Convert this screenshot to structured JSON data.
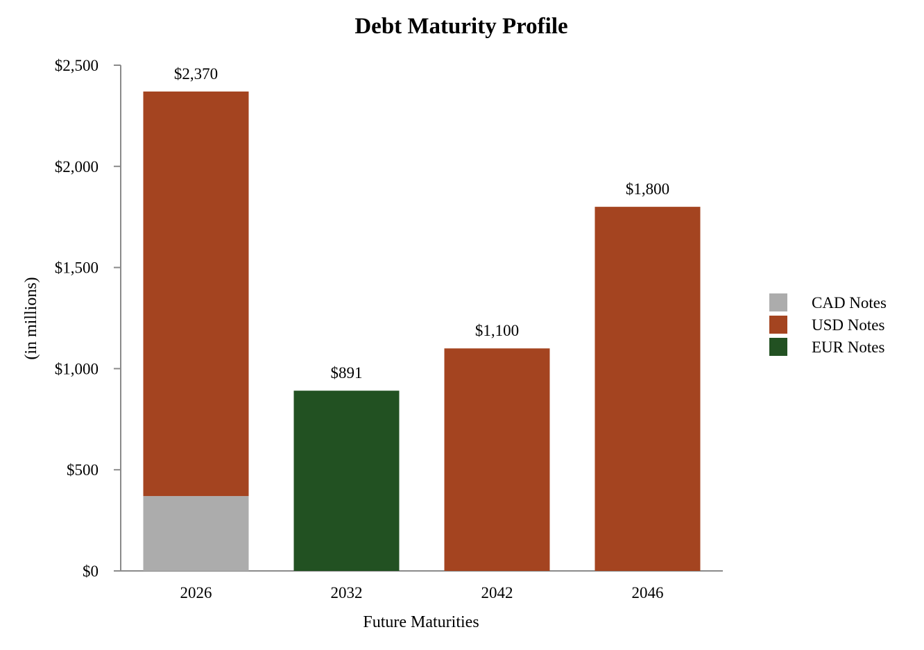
{
  "chart_data": {
    "type": "bar",
    "stacked": true,
    "title": "Debt Maturity Profile",
    "xlabel": "Future Maturities",
    "ylabel": "(in millions)",
    "categories": [
      "2026",
      "2032",
      "2042",
      "2046"
    ],
    "series": [
      {
        "name": "CAD Notes",
        "color": "#acacac",
        "values": [
          370,
          0,
          0,
          0
        ]
      },
      {
        "name": "USD Notes",
        "color": "#a44420",
        "values": [
          2000,
          0,
          1100,
          1800
        ]
      },
      {
        "name": "EUR Notes",
        "color": "#225122",
        "values": [
          0,
          891,
          0,
          0
        ]
      }
    ],
    "totals_labels": [
      "$2,370",
      "$891",
      "$1,100",
      "$1,800"
    ],
    "ylim": [
      0,
      2500
    ],
    "yticks": [
      0,
      500,
      1000,
      1500,
      2000,
      2500
    ],
    "ytick_labels": [
      "$0",
      "$500",
      "$1,000",
      "$1,500",
      "$2,000",
      "$2,500"
    ],
    "grid": false,
    "legend_position": "right"
  }
}
